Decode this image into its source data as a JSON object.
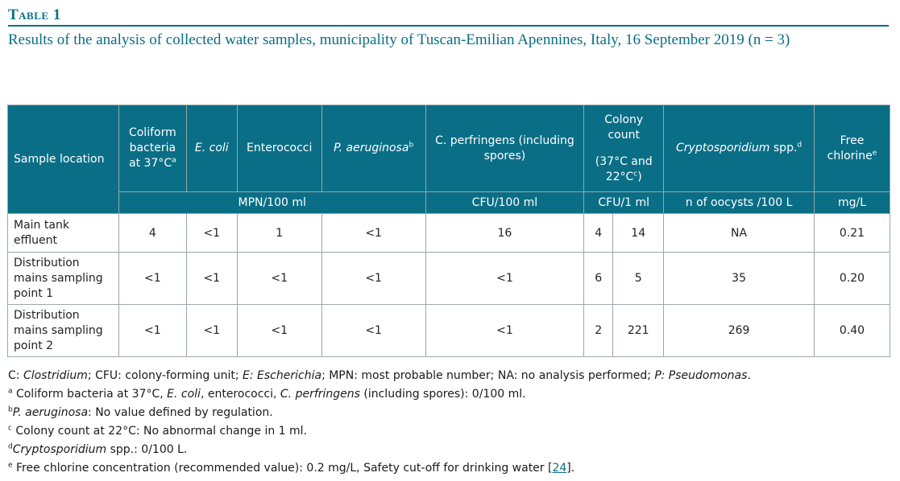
{
  "table_label": "Table 1",
  "caption": "Results of the analysis of collected water samples, municipality of Tuscan-Emilian Apennines, Italy, 16 September 2019 (n = 3)",
  "headers": {
    "sample_location": "Sample location",
    "coliform": "Coliform bacteria at 37°C",
    "coliform_sup": "a",
    "ecoli": "E. coli",
    "enterococci": "Enterococci",
    "paeruginosa": "P. aeruginosa",
    "paeruginosa_sup": "b",
    "cperfringens": "C. perfringens (including spores)",
    "colony_count": "Colony count",
    "colony_temp": "(37°C and 22°C",
    "colony_temp_sup": "c",
    "colony_temp_close": ")",
    "crypto": "Cryptosporidium",
    "crypto_suffix": " spp.",
    "crypto_sup": "d",
    "chlorine": "Free chlorine",
    "chlorine_sup": "e"
  },
  "units": {
    "mpn": "MPN/100 ml",
    "cfu100": "CFU/100 ml",
    "cfu1": "CFU/1 ml",
    "oocysts": "n of oocysts /100 L",
    "mgl": "mg/L"
  },
  "rows": [
    {
      "location": "Main tank effluent",
      "coliform": "4",
      "ecoli": "<1",
      "enterococci": "1",
      "paeruginosa": "<1",
      "cperfringens": "16",
      "count37": "4",
      "count22": "14",
      "crypto": "NA",
      "chlorine": "0.21"
    },
    {
      "location": "Distribution mains sampling point 1",
      "coliform": "<1",
      "ecoli": "<1",
      "enterococci": "<1",
      "paeruginosa": "<1",
      "cperfringens": "<1",
      "count37": "6",
      "count22": "5",
      "crypto": "35",
      "chlorine": "0.20"
    },
    {
      "location": "Distribution mains sampling point 2",
      "coliform": "<1",
      "ecoli": "<1",
      "enterococci": "<1",
      "paeruginosa": "<1",
      "cperfringens": "<1",
      "count37": "2",
      "count22": "221",
      "crypto": "269",
      "chlorine": "0.40"
    }
  ],
  "notes": {
    "abbrev": {
      "c_label": "C: ",
      "c_term": "Clostridium",
      "cfu": "; CFU: colony-forming unit; ",
      "e_label": "E: Escherichia",
      "mpn_na": "; MPN: most probable number; NA: no analysis performed; ",
      "p_label": "P: Pseudomonas",
      "end": "."
    },
    "a": {
      "sup": "a",
      "t1": " Coliform bacteria at 37°C, ",
      "t2": "E. coli",
      "t3": ", enterococci, ",
      "t4": "C. perfringens",
      "t5": " (including spores): 0/100 ml."
    },
    "b": {
      "sup": "b",
      "t1": "P. aeruginosa",
      "t2": ": No value defined by regulation."
    },
    "c": {
      "sup": "c",
      "t1": " Colony count at 22°C: No abnormal change in 1 ml."
    },
    "d": {
      "sup": "d",
      "t1": "Cryptosporidium",
      "t2": " spp.: 0/100 L."
    },
    "e": {
      "sup": "e",
      "t1": " Free chlorine concentration (recommended value): 0.2 mg/L, Safety cut-off for drinking water [",
      "ref": "24",
      "t2": "]."
    }
  }
}
